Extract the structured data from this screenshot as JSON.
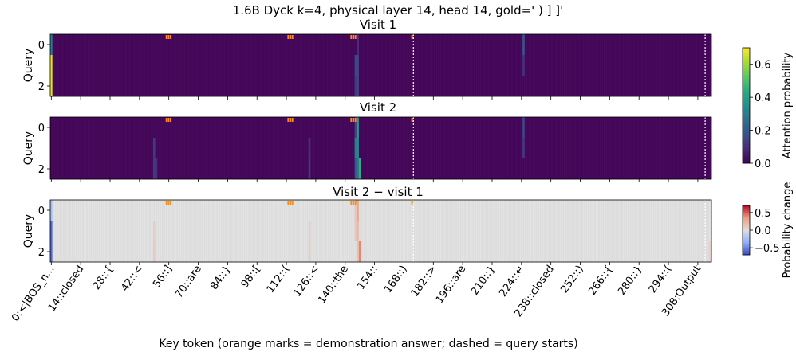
{
  "figure": {
    "title": "1.6B Dyck k=4, physical layer 14, head 14, gold=' ) ] ]'",
    "xlabel": "Key token (orange marks = demonstration answer; dashed = query starts)"
  },
  "chart_data": [
    {
      "type": "heatmap",
      "title": "Visit 1",
      "ylabel": "Query",
      "y_ticks": [
        "0",
        "2"
      ],
      "n_keys": 315,
      "n_queries": 3,
      "base_value": 0.01,
      "highlights": [
        {
          "key": 0,
          "query": 0,
          "value": 0.3
        },
        {
          "key": 0,
          "query": 1,
          "value": 0.68
        },
        {
          "key": 0,
          "query": 2,
          "value": 0.68
        },
        {
          "key": 145,
          "query": 1,
          "value": 0.15
        },
        {
          "key": 145,
          "query": 2,
          "value": 0.12
        },
        {
          "key": 146,
          "query": 0,
          "value": 0.1
        },
        {
          "key": 146,
          "query": 1,
          "value": 0.15
        },
        {
          "key": 146,
          "query": 2,
          "value": 0.15
        },
        {
          "key": 225,
          "query": 0,
          "value": 0.18
        },
        {
          "key": 225,
          "query": 1,
          "value": 0.1
        }
      ],
      "colorbar": {
        "label": "Attention probability",
        "ticks": [
          "0.0",
          "0.2",
          "0.4",
          "0.6"
        ],
        "range": [
          0,
          0.7
        ],
        "colormap": "viridis"
      }
    },
    {
      "type": "heatmap",
      "title": "Visit 2",
      "ylabel": "Query",
      "y_ticks": [
        "0",
        "2"
      ],
      "n_keys": 315,
      "n_queries": 3,
      "base_value": 0.01,
      "highlights": [
        {
          "key": 49,
          "query": 1,
          "value": 0.12
        },
        {
          "key": 49,
          "query": 2,
          "value": 0.12
        },
        {
          "key": 50,
          "query": 2,
          "value": 0.1
        },
        {
          "key": 123,
          "query": 1,
          "value": 0.1
        },
        {
          "key": 123,
          "query": 2,
          "value": 0.12
        },
        {
          "key": 145,
          "query": 0,
          "value": 0.15
        },
        {
          "key": 145,
          "query": 1,
          "value": 0.3
        },
        {
          "key": 145,
          "query": 2,
          "value": 0.2
        },
        {
          "key": 146,
          "query": 0,
          "value": 0.4
        },
        {
          "key": 146,
          "query": 1,
          "value": 0.35
        },
        {
          "key": 146,
          "query": 2,
          "value": 0.3
        },
        {
          "key": 147,
          "query": 2,
          "value": 0.45
        },
        {
          "key": 225,
          "query": 0,
          "value": 0.15
        },
        {
          "key": 225,
          "query": 1,
          "value": 0.12
        }
      ],
      "colorbar": {
        "label": "Attention probability",
        "ticks": [
          "0.0",
          "0.2",
          "0.4",
          "0.6"
        ],
        "range": [
          0,
          0.7
        ],
        "colormap": "viridis"
      }
    },
    {
      "type": "heatmap",
      "title": "Visit 2 − visit 1",
      "ylabel": "Query",
      "y_ticks": [
        "0",
        "2"
      ],
      "n_keys": 315,
      "n_queries": 3,
      "base_value": 0.0,
      "highlights": [
        {
          "key": 0,
          "query": 0,
          "value": -0.25
        },
        {
          "key": 0,
          "query": 1,
          "value": -0.6
        },
        {
          "key": 0,
          "query": 2,
          "value": -0.6
        },
        {
          "key": 49,
          "query": 1,
          "value": 0.08
        },
        {
          "key": 49,
          "query": 2,
          "value": 0.1
        },
        {
          "key": 123,
          "query": 1,
          "value": 0.08
        },
        {
          "key": 123,
          "query": 2,
          "value": 0.1
        },
        {
          "key": 145,
          "query": 0,
          "value": 0.12
        },
        {
          "key": 145,
          "query": 1,
          "value": 0.12
        },
        {
          "key": 146,
          "query": 0,
          "value": 0.3
        },
        {
          "key": 146,
          "query": 1,
          "value": 0.2
        },
        {
          "key": 146,
          "query": 2,
          "value": 0.15
        },
        {
          "key": 147,
          "query": 2,
          "value": 0.4
        },
        {
          "key": 314,
          "query": 2,
          "value": 0.1
        }
      ],
      "colorbar": {
        "label": "Probability change",
        "ticks": [
          "0.5",
          "0.0",
          "−0.5"
        ],
        "range": [
          -0.7,
          0.7
        ],
        "colormap": "coolwarm"
      }
    }
  ],
  "shared": {
    "x_ticks": [
      "0:<|BOS_n...",
      "14::closed",
      "28::{",
      "42::<",
      "56::]",
      "70::are",
      "84::}",
      "98::[",
      "112::(",
      "126::<",
      "140::the",
      "154::",
      "168::)",
      "182::>",
      "196::are",
      "210::}",
      "224::↵",
      "238::closed",
      "252::)",
      "266::{",
      "280::}",
      "294::(",
      "308:Output"
    ],
    "x_tick_step": 14,
    "demonstration_answer_keys": [
      55,
      56,
      57,
      113,
      114,
      115,
      143,
      144,
      145,
      172
    ],
    "query_start_keys": [
      173,
      312
    ]
  },
  "colors": {
    "marks": "#ff8c1a",
    "dashed": "#ffffff"
  }
}
